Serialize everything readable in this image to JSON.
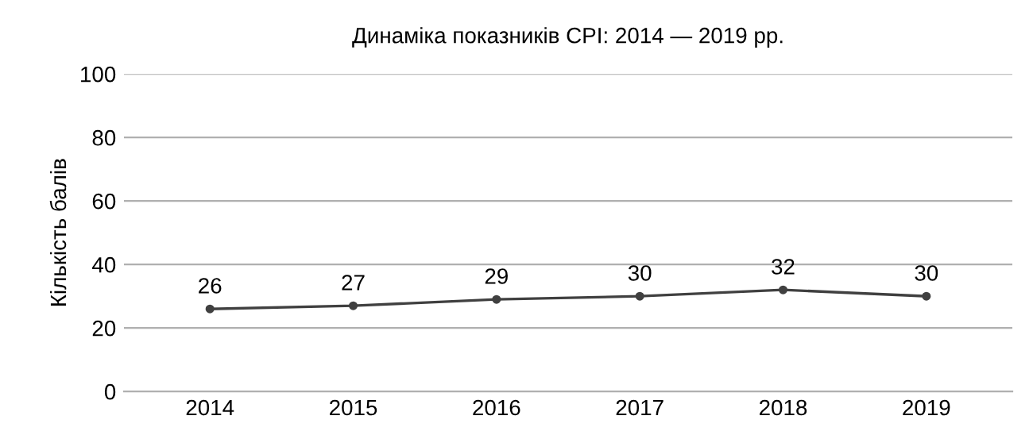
{
  "chart_data": {
    "type": "line",
    "title": "Динаміка показників CPI: 2014 — 2019 рр.",
    "ylabel": "Кількість балів",
    "categories": [
      "2014",
      "2015",
      "2016",
      "2017",
      "2018",
      "2019"
    ],
    "series": [
      {
        "color": "#404040",
        "values": [
          26,
          27,
          29,
          30,
          32,
          30
        ]
      }
    ],
    "ylim": [
      0,
      100
    ],
    "yticks": [
      0,
      20,
      40,
      60,
      80,
      100
    ],
    "grid": "y",
    "marker": "circle",
    "line_style": "solid",
    "data_labels": true
  }
}
